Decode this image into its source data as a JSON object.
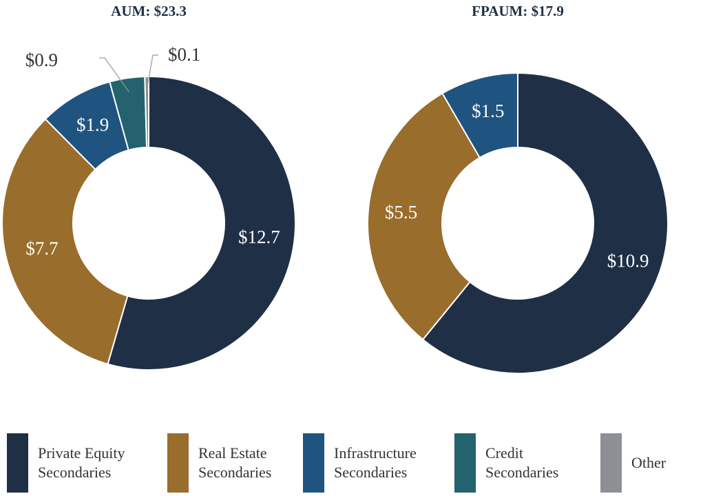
{
  "chart_data": [
    {
      "type": "pie",
      "variant": "donut",
      "title": "AUM: $23.3",
      "categories": [
        "Private Equity Secondaries",
        "Real Estate Secondaries",
        "Infrastructure Secondaries",
        "Credit Secondaries",
        "Other"
      ],
      "values": [
        12.7,
        7.7,
        1.9,
        0.9,
        0.1
      ],
      "labels": [
        "$12.7",
        "$7.7",
        "$1.9",
        "$0.9",
        "$0.1"
      ],
      "colors": [
        "#1f2f46",
        "#996d2c",
        "#1f5480",
        "#24636e",
        "#8e8f94"
      ]
    },
    {
      "type": "pie",
      "variant": "donut",
      "title": "FPAUM: $17.9",
      "categories": [
        "Private Equity Secondaries",
        "Real Estate Secondaries",
        "Infrastructure Secondaries"
      ],
      "values": [
        10.9,
        5.5,
        1.5
      ],
      "labels": [
        "$10.9",
        "$5.5",
        "$1.5"
      ],
      "colors": [
        "#1f2f46",
        "#996d2c",
        "#1f5480"
      ]
    }
  ],
  "legend": [
    {
      "label": "Private Equity\nSecondaries",
      "color": "#1f2f46"
    },
    {
      "label": "Real Estate\nSecondaries",
      "color": "#996d2c"
    },
    {
      "label": "Infrastructure\nSecondaries",
      "color": "#1f5480"
    },
    {
      "label": "Credit\nSecondaries",
      "color": "#24636e"
    },
    {
      "label": "Other",
      "color": "#8e8f94"
    }
  ]
}
